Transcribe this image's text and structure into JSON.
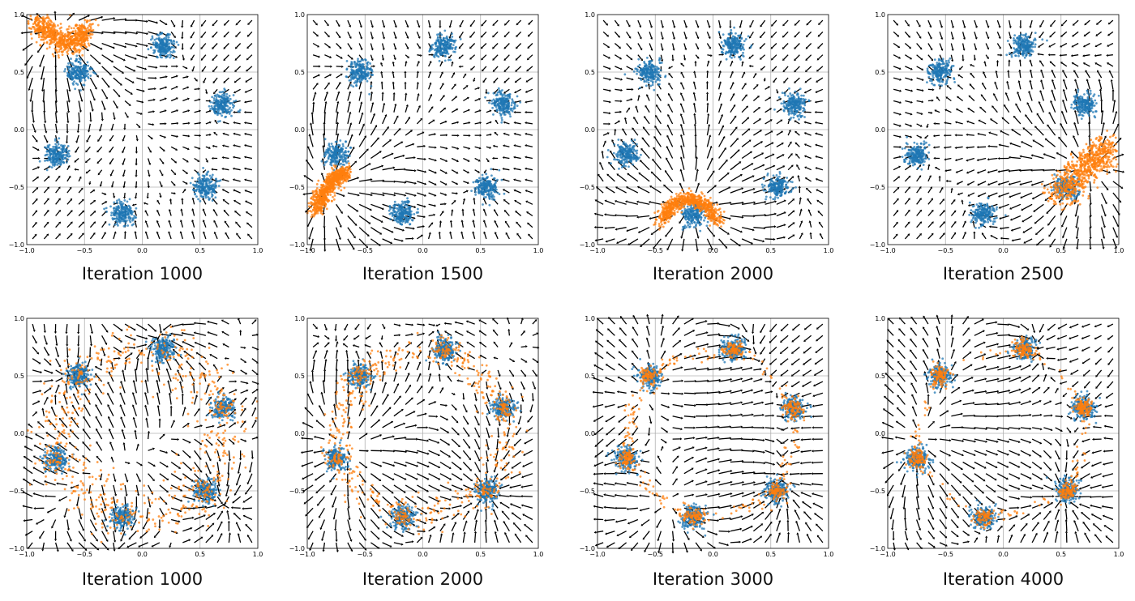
{
  "colors": {
    "real": "#1f77b4",
    "generated": "#ff7f0e",
    "arrows": "#000000"
  },
  "chart_data": {
    "type": "scatter",
    "layout": "grid 2 rows x 4 columns",
    "xlim": [
      -1.0,
      1.0
    ],
    "ylim": [
      -1.0,
      1.0
    ],
    "ticks": [
      "−1.0",
      "−0.5",
      "0.0",
      "0.5",
      "1.0"
    ],
    "tick_values": [
      -1.0,
      -0.5,
      0.0,
      0.5,
      1.0
    ],
    "grid": true,
    "overlay": "quiver vector field",
    "real_clusters": [
      [
        -0.55,
        0.5
      ],
      [
        0.18,
        0.73
      ],
      [
        0.7,
        0.22
      ],
      [
        0.55,
        -0.5
      ],
      [
        -0.17,
        -0.73
      ],
      [
        -0.75,
        -0.22
      ]
    ],
    "real_cluster_std": 0.05,
    "panels": [
      {
        "title": "Iteration 1000",
        "generated": {
          "path": [
            [
              -0.9,
              0.95
            ],
            [
              -0.82,
              0.84
            ],
            [
              -0.68,
              0.74
            ],
            [
              -0.55,
              0.78
            ],
            [
              -0.5,
              0.9
            ]
          ],
          "spread": 0.05,
          "closed": false,
          "on_clusters": 0
        }
      },
      {
        "title": "Iteration 1500",
        "generated": {
          "path": [
            [
              -0.93,
              -0.7
            ],
            [
              -0.86,
              -0.56
            ],
            [
              -0.76,
              -0.43
            ],
            [
              -0.66,
              -0.36
            ]
          ],
          "spread": 0.035,
          "closed": false,
          "on_clusters": 0
        }
      },
      {
        "title": "Iteration 2000",
        "generated": {
          "path": [
            [
              -0.45,
              -0.8
            ],
            [
              -0.36,
              -0.66
            ],
            [
              -0.22,
              -0.6
            ],
            [
              -0.08,
              -0.64
            ],
            [
              0.05,
              -0.8
            ]
          ],
          "spread": 0.03,
          "closed": false,
          "on_clusters": 0
        }
      },
      {
        "title": "Iteration 2500",
        "generated": {
          "path": [
            [
              0.48,
              -0.58
            ],
            [
              0.62,
              -0.42
            ],
            [
              0.76,
              -0.28
            ],
            [
              0.9,
              -0.16
            ]
          ],
          "spread": 0.07,
          "closed": false,
          "on_clusters": 0
        }
      },
      {
        "title": "Iteration 1000",
        "generated": {
          "path": "ring",
          "spread": 0.12,
          "closed": true,
          "on_clusters": 0.15
        }
      },
      {
        "title": "Iteration 2000",
        "generated": {
          "path": "ring",
          "spread": 0.07,
          "closed": true,
          "on_clusters": 0.3
        }
      },
      {
        "title": "Iteration 3000",
        "generated": {
          "path": "ring",
          "spread": 0.035,
          "closed": true,
          "on_clusters": 0.65
        }
      },
      {
        "title": "Iteration 4000",
        "generated": {
          "path": "ring",
          "spread": 0.025,
          "closed": true,
          "on_clusters": 0.85
        }
      }
    ]
  }
}
